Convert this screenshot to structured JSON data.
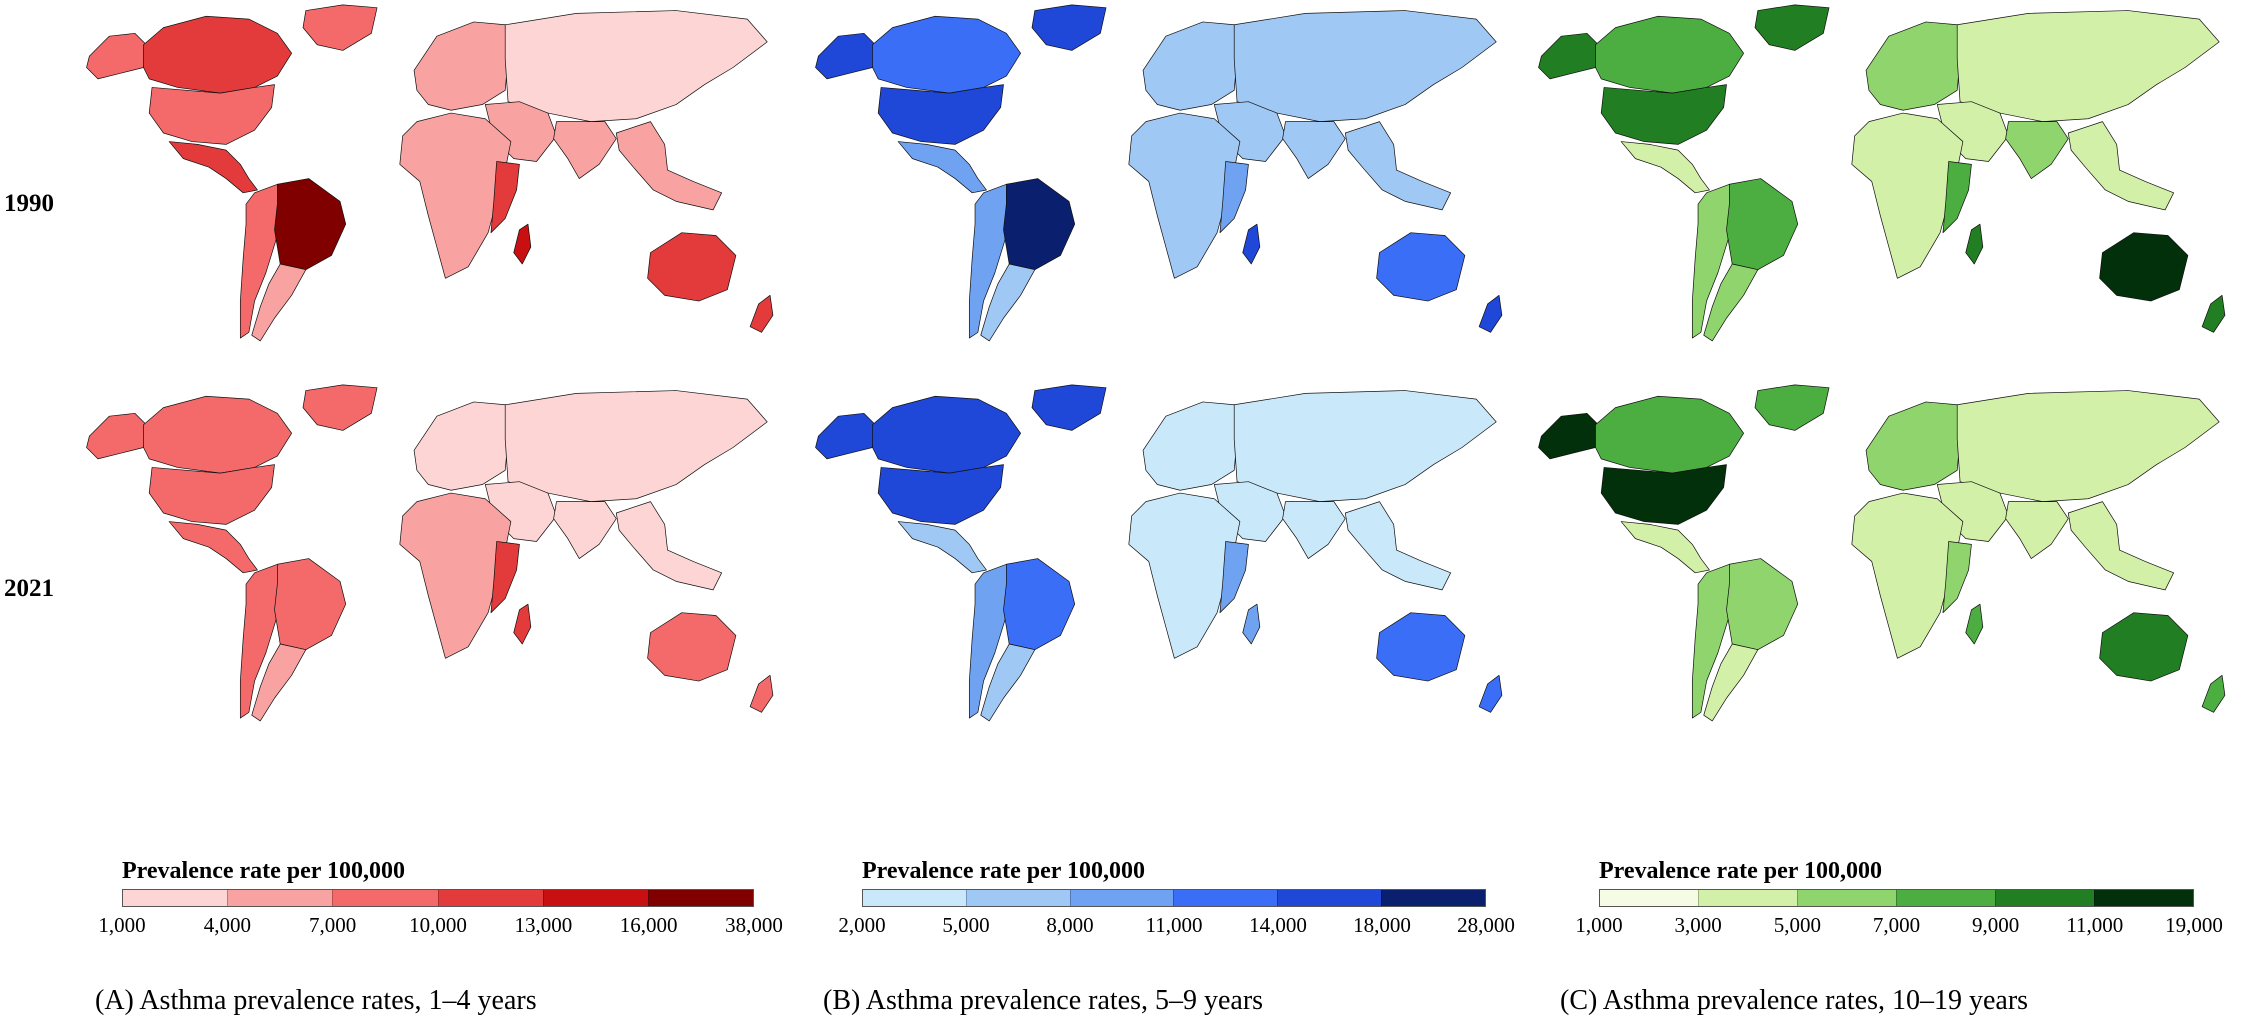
{
  "rows": [
    {
      "year": "1990"
    },
    {
      "year": "2021"
    }
  ],
  "panels": [
    {
      "id": "A",
      "caption": "(A) Asthma prevalence rates, 1–4 years",
      "legend_title": "Prevalence rate per 100,000",
      "breaks": [
        "1,000",
        "4,000",
        "7,000",
        "10,000",
        "13,000",
        "16,000",
        "38,000"
      ],
      "colors": [
        "#fdd5d4",
        "#f8a3a2",
        "#f46a6a",
        "#e33b3b",
        "#c80f12",
        "#800000"
      ],
      "no_data_color": "#d3d3d3",
      "maps": {
        "1990": {
          "north_america": 3,
          "usa": 2,
          "greenland": 2,
          "alaska": 2,
          "central_america": 3,
          "south_america_west": 2,
          "brazil": 5,
          "south_cone": 1,
          "europe": 1,
          "russia_asia": 0,
          "middle_east": 1,
          "africa": 1,
          "east_africa": 3,
          "south_asia": 1,
          "southeast_asia": 1,
          "australia": 3,
          "new_zealand": 3,
          "madagascar": 4
        },
        "2021": {
          "north_america": 2,
          "usa": 2,
          "greenland": 2,
          "alaska": 2,
          "central_america": 2,
          "south_america_west": 2,
          "brazil": 2,
          "south_cone": 1,
          "europe": 0,
          "russia_asia": 0,
          "middle_east": 0,
          "africa": 1,
          "east_africa": 3,
          "south_asia": 0,
          "southeast_asia": 0,
          "australia": 2,
          "new_zealand": 2,
          "madagascar": 3
        }
      }
    },
    {
      "id": "B",
      "caption": "(B) Asthma prevalence rates, 5–9 years",
      "legend_title": "Prevalence rate per 100,000",
      "breaks": [
        "2,000",
        "5,000",
        "8,000",
        "11,000",
        "14,000",
        "18,000",
        "28,000"
      ],
      "colors": [
        "#c9e9fb",
        "#a0c8f4",
        "#6fa2f0",
        "#3b6ef6",
        "#1f47d8",
        "#0a1f6e"
      ],
      "no_data_color": "#d3d3d3",
      "maps": {
        "1990": {
          "north_america": 3,
          "usa": 4,
          "greenland": 4,
          "alaska": 4,
          "central_america": 2,
          "south_america_west": 2,
          "brazil": 5,
          "south_cone": 1,
          "europe": 1,
          "russia_asia": 1,
          "middle_east": 1,
          "africa": 1,
          "east_africa": 2,
          "south_asia": 1,
          "southeast_asia": 1,
          "australia": 3,
          "new_zealand": 4,
          "madagascar": 4
        },
        "2021": {
          "north_america": 4,
          "usa": 4,
          "greenland": 4,
          "alaska": 4,
          "central_america": 1,
          "south_america_west": 2,
          "brazil": 3,
          "south_cone": 1,
          "europe": 0,
          "russia_asia": 0,
          "middle_east": 0,
          "africa": 0,
          "east_africa": 2,
          "south_asia": 0,
          "southeast_asia": 0,
          "australia": 3,
          "new_zealand": 3,
          "madagascar": 2
        }
      }
    },
    {
      "id": "C",
      "caption": "(C) Asthma prevalence rates, 10–19 years",
      "legend_title": "Prevalence rate per 100,000",
      "breaks": [
        "1,000",
        "3,000",
        "5,000",
        "7,000",
        "9,000",
        "11,000",
        "19,000"
      ],
      "colors": [
        "#f5fbe4",
        "#d3f0a8",
        "#8fd46c",
        "#4cad40",
        "#227e23",
        "#01300a"
      ],
      "no_data_color": "#d3d3d3",
      "maps": {
        "1990": {
          "north_america": 3,
          "usa": 4,
          "greenland": 4,
          "alaska": 4,
          "central_america": 1,
          "south_america_west": 2,
          "brazil": 3,
          "south_cone": 2,
          "europe": 2,
          "russia_asia": 1,
          "middle_east": 1,
          "africa": 1,
          "east_africa": 3,
          "south_asia": 2,
          "southeast_asia": 1,
          "australia": 5,
          "new_zealand": 4,
          "madagascar": 4
        },
        "2021": {
          "north_america": 3,
          "usa": 5,
          "greenland": 3,
          "alaska": 5,
          "central_america": 1,
          "south_america_west": 2,
          "brazil": 2,
          "south_cone": 1,
          "europe": 2,
          "russia_asia": 1,
          "middle_east": 1,
          "africa": 1,
          "east_africa": 2,
          "south_asia": 1,
          "southeast_asia": 1,
          "australia": 4,
          "new_zealand": 3,
          "madagascar": 3
        }
      }
    }
  ]
}
